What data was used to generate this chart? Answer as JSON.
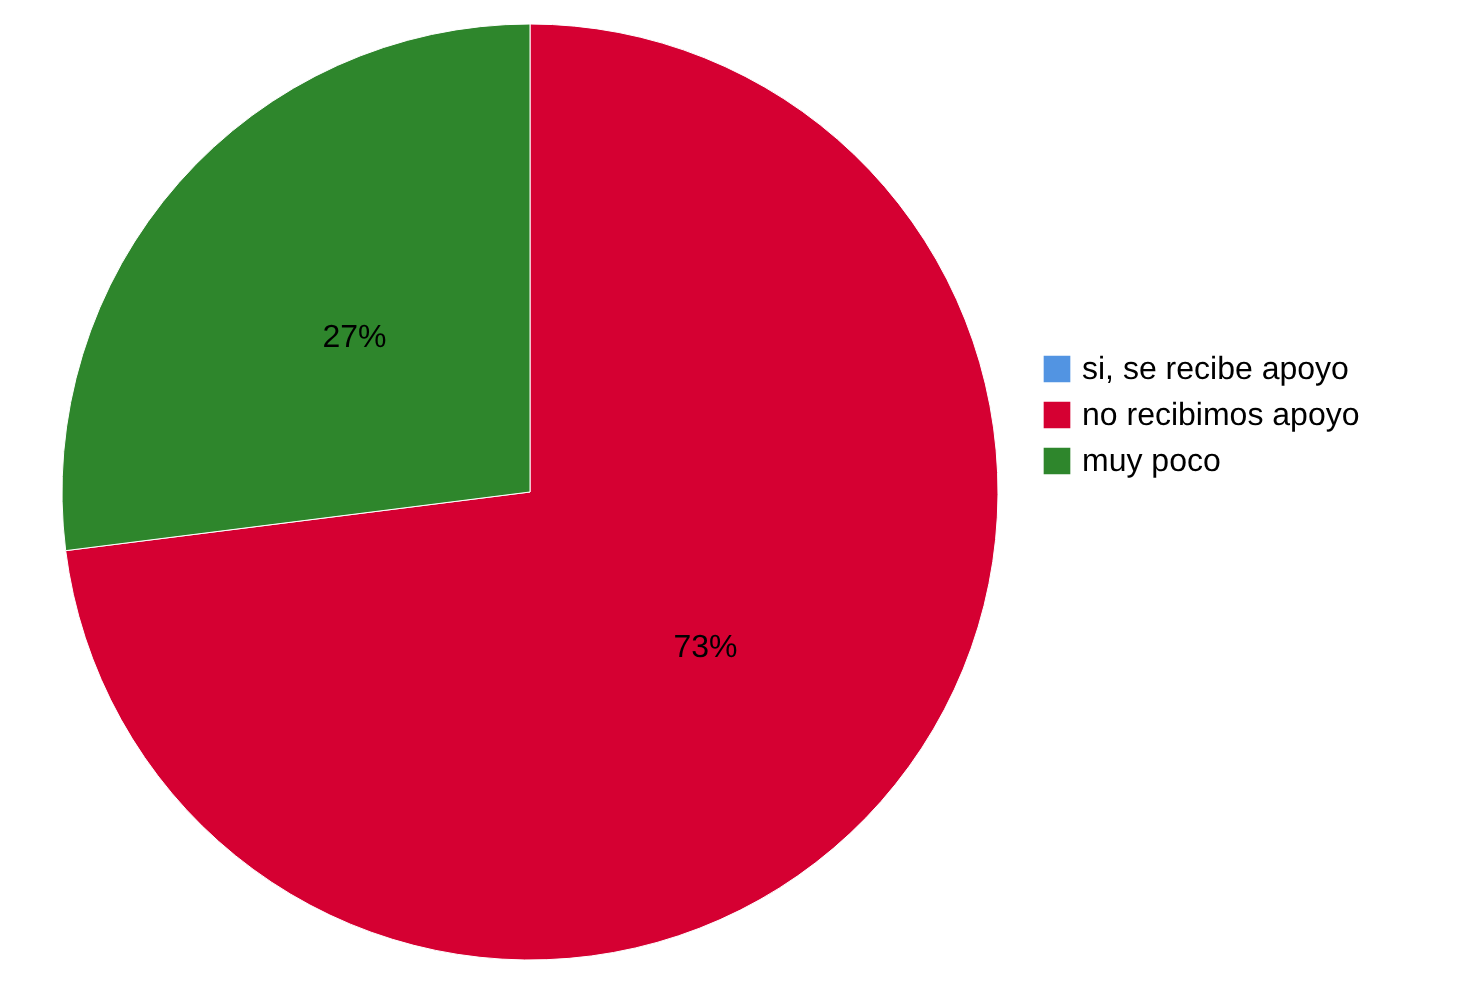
{
  "chart_data": {
    "type": "pie",
    "categories": [
      "si, se recibe apoyo",
      "no recibimos apoyo",
      "muy poco"
    ],
    "values": [
      0,
      73,
      27
    ],
    "colors": [
      "#5294e2",
      "#d50032",
      "#2e862c"
    ],
    "value_labels": [
      null,
      "73%",
      "27%"
    ],
    "legend": "right"
  }
}
